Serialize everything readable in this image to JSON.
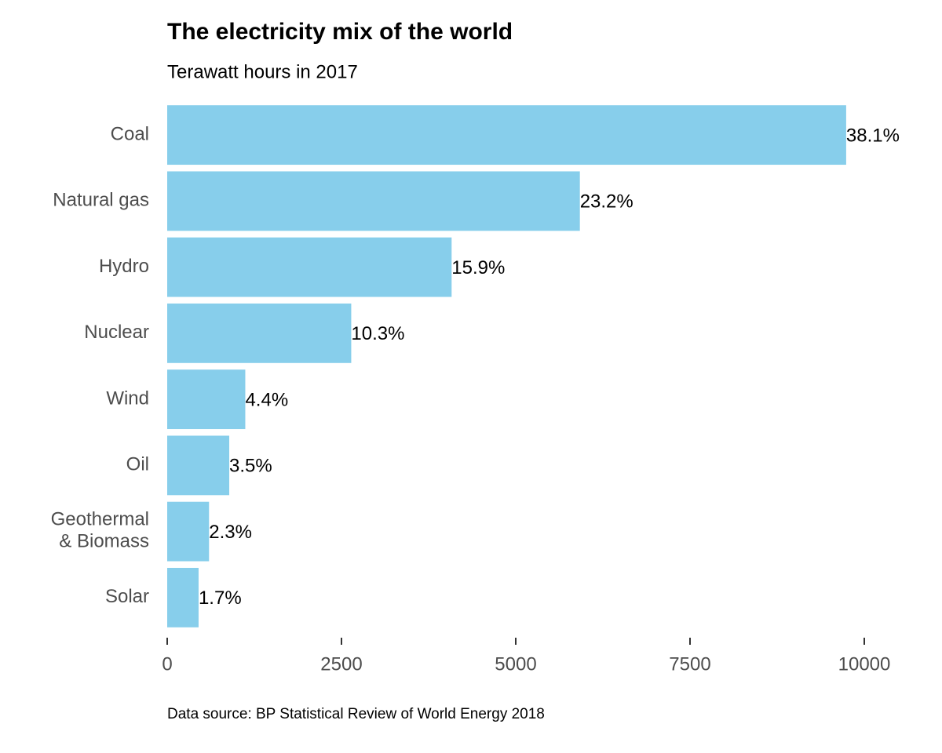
{
  "chart_data": {
    "type": "barh",
    "title": "The electricity mix of the world",
    "subtitle": "Terawatt hours in 2017",
    "source": "Data source: BP Statistical Review of World Energy 2018",
    "categories": [
      "Coal",
      "Natural gas",
      "Hydro",
      "Nuclear",
      "Wind",
      "Oil",
      "Geothermal\n& Biomass",
      "Solar"
    ],
    "values": [
      9740,
      5920,
      4080,
      2640,
      1120,
      890,
      600,
      450
    ],
    "share_labels": [
      "38.1%",
      "23.2%",
      "15.9%",
      "10.3%",
      "4.4%",
      "3.5%",
      "2.3%",
      "1.7%"
    ],
    "color": "#87ceeb",
    "xlim": [
      0,
      10000
    ],
    "xticks": [
      0,
      2500,
      5000,
      7500,
      10000
    ],
    "grid": false
  }
}
